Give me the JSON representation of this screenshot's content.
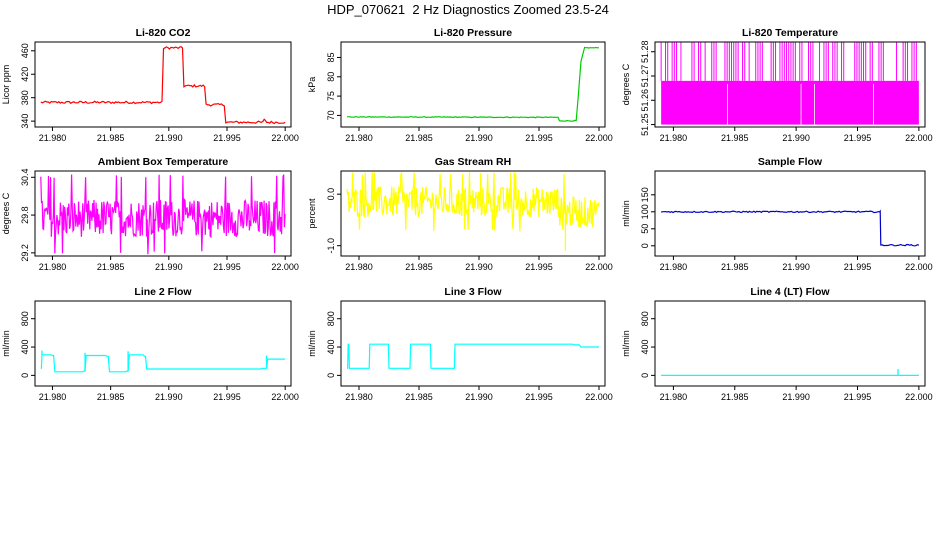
{
  "suptitle": "HDP_070621  2 Hz Diagnostics Zoomed 23.5-24",
  "chart_data": [
    {
      "type": "line",
      "title": "Li-820 CO2",
      "ylabel": "Licor ppm",
      "color": "#ff0000",
      "xlim": [
        21.9785,
        22.0005
      ],
      "ylim": [
        330,
        475
      ],
      "xticks": [
        21.98,
        21.985,
        21.99,
        21.995,
        22.0
      ],
      "xtick_labels": [
        "21.980",
        "21.985",
        "21.990",
        "21.995",
        "22.000"
      ],
      "yticks": [
        340,
        380,
        420,
        460
      ],
      "ytick_labels": [
        "340",
        "380",
        "420",
        "460"
      ],
      "kind": "step",
      "noise": 2,
      "segments": [
        [
          21.979,
          372
        ],
        [
          21.9898,
          465
        ],
        [
          21.9913,
          400
        ],
        [
          21.9932,
          368
        ],
        [
          21.9949,
          338
        ],
        [
          21.9982,
          342
        ],
        [
          21.9984,
          338
        ],
        [
          22.0,
          338
        ]
      ],
      "spikes": []
    },
    {
      "type": "line",
      "title": "Li-820 Pressure",
      "ylabel": "kPa",
      "color": "#00cc00",
      "xlim": [
        21.9785,
        22.0005
      ],
      "ylim": [
        67,
        89
      ],
      "xticks": [
        21.98,
        21.985,
        21.99,
        21.995,
        22.0
      ],
      "xtick_labels": [
        "21.980",
        "21.985",
        "21.990",
        "21.995",
        "22.000"
      ],
      "yticks": [
        70,
        75,
        80,
        85
      ],
      "ytick_labels": [
        "70",
        "75",
        "80",
        "85"
      ],
      "kind": "points",
      "points": [
        [
          21.979,
          69.6
        ],
        [
          21.9966,
          69.5
        ],
        [
          21.9967,
          68.6
        ],
        [
          21.9981,
          68.6
        ],
        [
          21.9983,
          76
        ],
        [
          21.9985,
          84
        ],
        [
          21.9988,
          87.5
        ],
        [
          22.0,
          87.5
        ]
      ],
      "noise": 0.1,
      "spikes": []
    },
    {
      "type": "line",
      "title": "Li-820 Temperature",
      "ylabel": "degrees C",
      "color": "#ff00ff",
      "xlim": [
        21.9785,
        22.0005
      ],
      "ylim": [
        51.249,
        51.284
      ],
      "xticks": [
        21.98,
        21.985,
        21.99,
        21.995,
        22.0
      ],
      "xtick_labels": [
        "21.980",
        "21.985",
        "21.990",
        "21.995",
        "22.000"
      ],
      "yticks": [
        51.25,
        51.26,
        51.27,
        51.28
      ],
      "ytick_labels": [
        "51.25",
        "51.26",
        "51.27",
        "51.28"
      ],
      "kind": "band",
      "band": [
        51.25,
        51.268
      ],
      "spike_to": 51.284,
      "noise": 0,
      "segments": [],
      "spikes": []
    },
    {
      "type": "line",
      "title": "Ambient Box Temperature",
      "ylabel": "degrees C",
      "color": "#ff00ff",
      "xlim": [
        21.9785,
        22.0005
      ],
      "ylim": [
        29.15,
        30.5
      ],
      "xticks": [
        21.98,
        21.985,
        21.99,
        21.995,
        22.0
      ],
      "xtick_labels": [
        "21.980",
        "21.985",
        "21.990",
        "21.995",
        "22.000"
      ],
      "yticks": [
        29.2,
        29.8,
        30.4
      ],
      "ytick_labels": [
        "29.2",
        "29.8",
        "30.4"
      ],
      "kind": "noise",
      "center": 29.75,
      "amp": 0.3,
      "extreme": [
        29.2,
        30.42
      ],
      "segments": [],
      "spikes": []
    },
    {
      "type": "line",
      "title": "Gas Stream RH",
      "ylabel": "percent",
      "color": "#ffff00",
      "xlim": [
        21.9785,
        22.0005
      ],
      "ylim": [
        -1.2,
        0.45
      ],
      "xticks": [
        21.98,
        21.985,
        21.99,
        21.995,
        22.0
      ],
      "xtick_labels": [
        "21.980",
        "21.985",
        "21.990",
        "21.995",
        "22.000"
      ],
      "yticks": [
        -1.0,
        0.0
      ],
      "ytick_labels": [
        "-1.0",
        "0.0"
      ],
      "kind": "noise",
      "center": -0.15,
      "amp": 0.3,
      "extreme": [
        -0.7,
        0.4
      ],
      "late": {
        "from": 21.9967,
        "center": -0.35
      },
      "segments": [],
      "spikes": [
        [
          21.9972,
          -1.1
        ]
      ]
    },
    {
      "type": "line",
      "title": "Sample Flow",
      "ylabel": "ml/min",
      "color": "#0000cc",
      "xlim": [
        21.9785,
        22.0005
      ],
      "ylim": [
        -30,
        220
      ],
      "xticks": [
        21.98,
        21.985,
        21.99,
        21.995,
        22.0
      ],
      "xtick_labels": [
        "21.980",
        "21.985",
        "21.990",
        "21.995",
        "22.000"
      ],
      "yticks": [
        0,
        50,
        100,
        150
      ],
      "ytick_labels": [
        "0",
        "50",
        "100",
        "150"
      ],
      "kind": "step",
      "noise": 2,
      "segments": [
        [
          21.979,
          100
        ],
        [
          21.9968,
          100
        ],
        [
          21.9969,
          2
        ],
        [
          22.0,
          2
        ]
      ],
      "spikes": []
    },
    {
      "type": "line",
      "title": "Line 2 Flow",
      "ylabel": "ml/min",
      "color": "#00ffff",
      "xlim": [
        21.9785,
        22.0005
      ],
      "ylim": [
        -150,
        1050
      ],
      "xticks": [
        21.98,
        21.985,
        21.99,
        21.995,
        22.0
      ],
      "xtick_labels": [
        "21.980",
        "21.985",
        "21.990",
        "21.995",
        "22.000"
      ],
      "yticks": [
        0,
        400,
        800
      ],
      "ytick_labels": [
        "0",
        "400",
        "800"
      ],
      "kind": "step",
      "noise": 0,
      "segments": [
        [
          21.979,
          100
        ],
        [
          21.9791,
          290
        ],
        [
          21.98,
          280
        ],
        [
          21.9802,
          50
        ],
        [
          21.9827,
          60
        ],
        [
          21.9829,
          280
        ],
        [
          21.9847,
          270
        ],
        [
          21.9849,
          50
        ],
        [
          21.9864,
          60
        ],
        [
          21.9866,
          290
        ],
        [
          21.9879,
          270
        ],
        [
          21.9881,
          90
        ],
        [
          21.9983,
          100
        ],
        [
          21.9985,
          230
        ],
        [
          22.0,
          230
        ]
      ],
      "spikes": [
        [
          21.9791,
          350
        ],
        [
          21.9828,
          320
        ],
        [
          21.9865,
          340
        ],
        [
          21.9984,
          280
        ]
      ]
    },
    {
      "type": "line",
      "title": "Line 3 Flow",
      "ylabel": "ml/min",
      "color": "#00ffff",
      "xlim": [
        21.9785,
        22.0005
      ],
      "ylim": [
        -150,
        1050
      ],
      "xticks": [
        21.98,
        21.985,
        21.99,
        21.995,
        22.0
      ],
      "xtick_labels": [
        "21.980",
        "21.985",
        "21.990",
        "21.995",
        "22.000"
      ],
      "yticks": [
        0,
        400,
        800
      ],
      "ytick_labels": [
        "0",
        "400",
        "800"
      ],
      "kind": "step",
      "noise": 0,
      "segments": [
        [
          21.979,
          100
        ],
        [
          21.9791,
          440
        ],
        [
          21.9792,
          100
        ],
        [
          21.9808,
          100
        ],
        [
          21.9809,
          440
        ],
        [
          21.9824,
          440
        ],
        [
          21.9825,
          100
        ],
        [
          21.9842,
          100
        ],
        [
          21.9843,
          440
        ],
        [
          21.9859,
          440
        ],
        [
          21.986,
          100
        ],
        [
          21.9879,
          100
        ],
        [
          21.988,
          440
        ],
        [
          21.9982,
          430
        ],
        [
          21.9985,
          400
        ],
        [
          22.0,
          400
        ]
      ],
      "spikes": []
    },
    {
      "type": "line",
      "title": "Line 4 (LT) Flow",
      "ylabel": "ml/min",
      "color": "#00ffff",
      "xlim": [
        21.9785,
        22.0005
      ],
      "ylim": [
        -150,
        1050
      ],
      "xticks": [
        21.98,
        21.985,
        21.99,
        21.995,
        22.0
      ],
      "xtick_labels": [
        "21.980",
        "21.985",
        "21.990",
        "21.995",
        "22.000"
      ],
      "yticks": [
        0,
        400,
        800
      ],
      "ytick_labels": [
        "0",
        "400",
        "800"
      ],
      "kind": "step",
      "noise": 0,
      "segments": [
        [
          21.979,
          0
        ],
        [
          22.0,
          0
        ]
      ],
      "spikes": [
        [
          21.9983,
          90
        ]
      ]
    }
  ]
}
